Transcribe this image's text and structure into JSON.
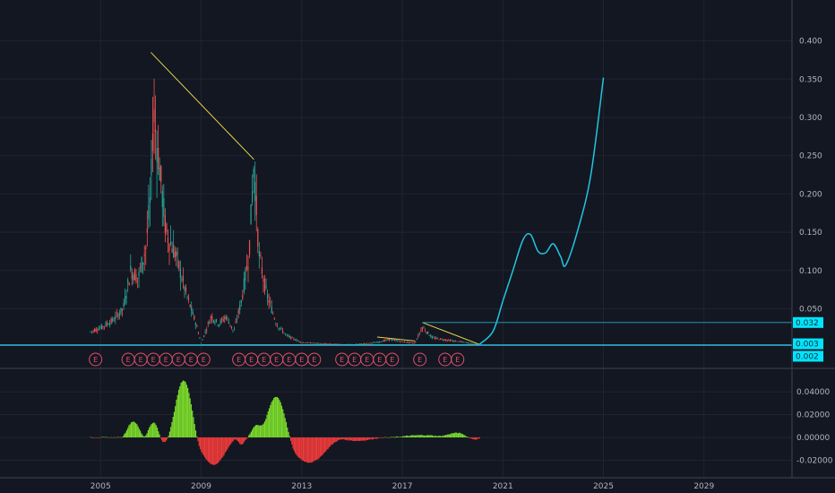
{
  "colors": {
    "background": "#131722",
    "grid": "#1f2430",
    "axis_text": "#b2b5be",
    "separator": "#434651",
    "candle_up": "#26a69a",
    "candle_down": "#ef5350",
    "trendline": "#e6d34c",
    "forecast": "#22c5e0",
    "level": "#2aa7c4",
    "level_tag": "#00e5ff",
    "hist_up": "#7cdc2c",
    "hist_down": "#ef3b3b",
    "earnings": "#e0506a"
  },
  "chart_data": [
    {
      "type": "line",
      "name": "price",
      "x_axis": {
        "ticks": [
          2005,
          2009,
          2013,
          2017,
          2021,
          2025,
          2029
        ],
        "labels": [
          "2005",
          "2009",
          "2013",
          "2017",
          "2021",
          "2025",
          "2029"
        ],
        "range": [
          2001.0,
          2032.5
        ]
      },
      "y_axis": {
        "ticks": [
          0.05,
          0.1,
          0.15,
          0.2,
          0.25,
          0.3,
          0.35,
          0.4
        ],
        "labels": [
          "0.050",
          "0.100",
          "0.150",
          "0.200",
          "0.250",
          "0.300",
          "0.350",
          "0.400"
        ],
        "range": [
          -0.001,
          0.43
        ]
      },
      "price_series": {
        "x": [
          2004.6,
          2005.0,
          2005.5,
          2005.9,
          2006.2,
          2006.5,
          2006.8,
          2007.0,
          2007.1,
          2007.3,
          2007.6,
          2008.0,
          2008.4,
          2008.8,
          2009.0,
          2009.4,
          2009.7,
          2010.0,
          2010.3,
          2010.6,
          2010.9,
          2011.1,
          2011.3,
          2011.6,
          2012.0,
          2012.4,
          2013.0,
          2014.0,
          2015.0,
          2016.0,
          2016.5,
          2017.0,
          2017.5,
          2017.8,
          2018.2,
          2019.0,
          2019.5,
          2020.1
        ],
        "y": [
          0.02,
          0.025,
          0.035,
          0.05,
          0.1,
          0.09,
          0.13,
          0.2,
          0.31,
          0.25,
          0.15,
          0.12,
          0.07,
          0.03,
          0.005,
          0.04,
          0.03,
          0.04,
          0.02,
          0.06,
          0.12,
          0.24,
          0.12,
          0.07,
          0.03,
          0.015,
          0.006,
          0.004,
          0.003,
          0.006,
          0.01,
          0.007,
          0.005,
          0.026,
          0.012,
          0.008,
          0.006,
          0.003
        ]
      },
      "trendlines": [
        {
          "x": [
            2007.0,
            2011.1
          ],
          "y": [
            0.385,
            0.245
          ]
        },
        {
          "x": [
            2009.0,
            2020.1
          ],
          "y": [
            0.003,
            0.003
          ]
        },
        {
          "x": [
            2016.0,
            2017.5
          ],
          "y": [
            0.013,
            0.008
          ]
        },
        {
          "x": [
            2017.8,
            2020.1
          ],
          "y": [
            0.032,
            0.003
          ]
        }
      ],
      "forecast": {
        "x": [
          2020.0,
          2020.6,
          2021.0,
          2021.4,
          2021.8,
          2022.1,
          2022.4,
          2022.7,
          2023.0,
          2023.3,
          2023.5,
          2024.0,
          2024.5,
          2025.0
        ],
        "y": [
          0.002,
          0.02,
          0.06,
          0.1,
          0.14,
          0.147,
          0.125,
          0.123,
          0.135,
          0.118,
          0.107,
          0.155,
          0.225,
          0.352
        ]
      },
      "levels": [
        {
          "value": 0.032,
          "label": "0.032",
          "from_x": 2017.8
        },
        {
          "value": 0.003,
          "label": "0.003",
          "from_x": 2001.0
        },
        {
          "value": 0.002,
          "label": "0.002",
          "from_x": 2001.0
        }
      ],
      "earnings_markers": {
        "label": "E",
        "x": [
          2004.8,
          2006.1,
          2006.6,
          2007.1,
          2007.6,
          2008.1,
          2008.6,
          2009.1,
          2010.5,
          2011.0,
          2011.5,
          2012.0,
          2012.5,
          2013.0,
          2013.5,
          2014.6,
          2015.1,
          2015.6,
          2016.1,
          2016.6,
          2017.7,
          2018.7,
          2019.2
        ]
      }
    },
    {
      "type": "bar",
      "name": "oscillator",
      "y_axis": {
        "ticks": [
          0.04,
          0.02,
          0.0,
          -0.02
        ],
        "labels": [
          "0.04000",
          "0.02000",
          "0.00000",
          "-0.02000"
        ],
        "range": [
          -0.033,
          0.055
        ]
      },
      "bumps": [
        {
          "center": 2006.3,
          "width": 0.5,
          "peak": 0.014,
          "sign": "up"
        },
        {
          "center": 2007.1,
          "width": 0.4,
          "peak": 0.013,
          "sign": "up"
        },
        {
          "center": 2007.5,
          "width": 0.3,
          "peak": -0.004,
          "sign": "down"
        },
        {
          "center": 2008.3,
          "width": 0.7,
          "peak": 0.05,
          "sign": "up"
        },
        {
          "center": 2009.5,
          "width": 1.0,
          "peak": -0.024,
          "sign": "down"
        },
        {
          "center": 2010.6,
          "width": 0.3,
          "peak": -0.006,
          "sign": "down"
        },
        {
          "center": 2011.2,
          "width": 0.4,
          "peak": 0.011,
          "sign": "up"
        },
        {
          "center": 2012.0,
          "width": 0.8,
          "peak": 0.036,
          "sign": "up"
        },
        {
          "center": 2013.3,
          "width": 1.4,
          "peak": -0.022,
          "sign": "down"
        },
        {
          "center": 2015.2,
          "width": 1.2,
          "peak": -0.003,
          "sign": "down"
        },
        {
          "center": 2017.8,
          "width": 1.5,
          "peak": 0.002,
          "sign": "up"
        },
        {
          "center": 2019.2,
          "width": 0.8,
          "peak": 0.004,
          "sign": "up"
        },
        {
          "center": 2019.8,
          "width": 0.6,
          "peak": -0.002,
          "sign": "down"
        }
      ]
    }
  ]
}
